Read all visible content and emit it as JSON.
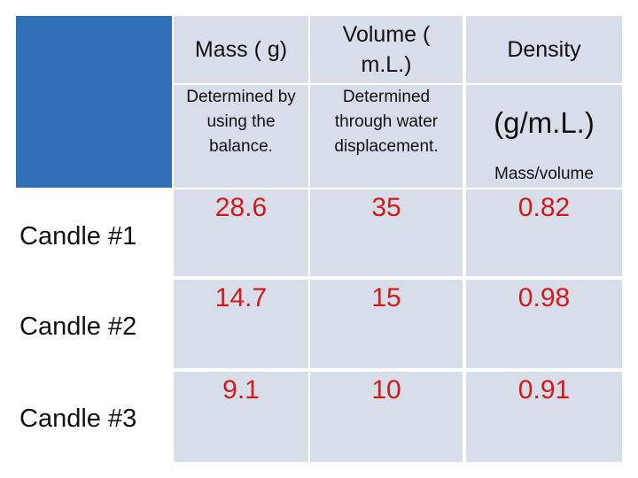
{
  "table": {
    "headers": {
      "mass": "Mass ( g)",
      "volume_line1": "Volume (",
      "volume_line2": "m.L.)",
      "density": "Density"
    },
    "subheaders": {
      "mass_l1": "Determined by",
      "mass_l2": "using the",
      "mass_l3": "balance.",
      "volume_l1": "Determined",
      "volume_l2": "through water",
      "volume_l3": "displacement.",
      "density_unit": "(g/m.L.)",
      "density_formula": "Mass/volume"
    },
    "rows": [
      {
        "label": "Candle #1",
        "mass": "28.6",
        "volume": "35",
        "density": "0.82"
      },
      {
        "label": "Candle #2",
        "mass": "14.7",
        "volume": "15",
        "density": "0.98"
      },
      {
        "label": "Candle #3",
        "mass": "9.1",
        "volume": "10",
        "density": "0.91"
      }
    ],
    "colors": {
      "corner": "#2f6fb6",
      "cell": "#d7dee9",
      "value_text": "#d11a1a"
    }
  }
}
